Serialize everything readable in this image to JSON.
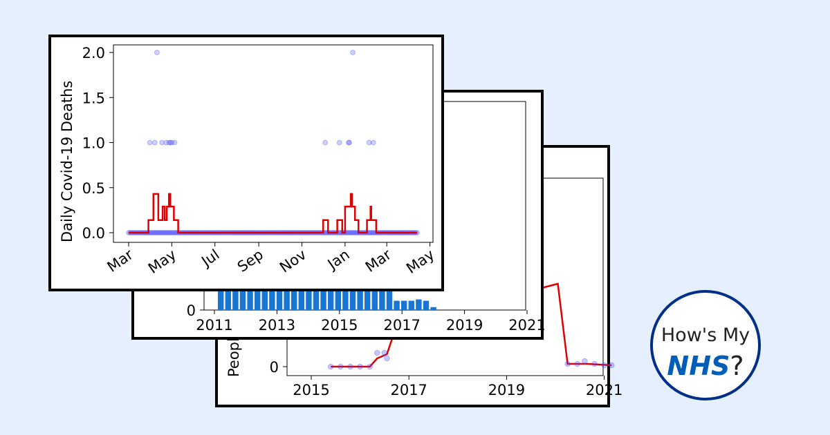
{
  "colors": {
    "background": "#e6effd",
    "bar": "#1976d2",
    "line": "#dd0000",
    "point": "#4444ff",
    "brand_blue": "#005eb8",
    "border_blue": "#003087"
  },
  "logo": {
    "text_line1": "How's My",
    "brand": "NHS",
    "suffix": "?"
  },
  "chart_data": [
    {
      "type": "scatter",
      "panel": "back",
      "ylabel": "People",
      "x_ticks": [
        "2015",
        "2017",
        "2019",
        "2021"
      ],
      "y_ticks": [
        "0"
      ],
      "points": [
        [
          2015.4,
          0
        ],
        [
          2015.6,
          0
        ],
        [
          2015.8,
          0
        ],
        [
          2016.0,
          0
        ],
        [
          2016.2,
          0
        ],
        [
          2016.35,
          0.5
        ],
        [
          2016.5,
          0.5
        ],
        [
          2016.55,
          0.3
        ],
        [
          2020.25,
          0.1
        ],
        [
          2020.45,
          0.1
        ],
        [
          2020.6,
          0.2
        ],
        [
          2020.8,
          0.1
        ],
        [
          2021.0,
          0.05
        ],
        [
          2021.15,
          0.05
        ]
      ],
      "line": [
        [
          2015.4,
          0
        ],
        [
          2016.2,
          0
        ],
        [
          2016.35,
          0.3
        ],
        [
          2016.55,
          0.45
        ],
        [
          2016.75,
          1.5
        ],
        [
          2020.05,
          3.0
        ],
        [
          2020.25,
          0.1
        ],
        [
          2020.45,
          0.1
        ],
        [
          2020.65,
          0.1
        ],
        [
          2021.15,
          0.05
        ]
      ]
    },
    {
      "type": "bar",
      "panel": "middle",
      "x_ticks": [
        "2011",
        "2013",
        "2015",
        "2017",
        "2019",
        "2021"
      ],
      "y_ticks": [
        "0"
      ],
      "categories": [
        "2011-Q2",
        "2011-Q3",
        "2011-Q4",
        "2012-Q1",
        "2012-Q2",
        "2012-Q3",
        "2012-Q4",
        "2013-Q1",
        "2013-Q2",
        "2013-Q3",
        "2013-Q4",
        "2014-Q1",
        "2014-Q2",
        "2014-Q3",
        "2014-Q4",
        "2015-Q1",
        "2015-Q2",
        "2015-Q3",
        "2015-Q4",
        "2016-Q1",
        "2016-Q2",
        "2016-Q3",
        "2016-Q4",
        "2017-Q1",
        "2017-Q2",
        "2017-Q3",
        "2017-Q4",
        "2018-Q1",
        "2018-Q2",
        "2018-Q3"
      ],
      "values": [
        100,
        100,
        100,
        100,
        100,
        100,
        100,
        100,
        100,
        100,
        100,
        100,
        100,
        100,
        100,
        100,
        100,
        100,
        100,
        100,
        100,
        100,
        100,
        100,
        48,
        48,
        48,
        55,
        48,
        15
      ]
    },
    {
      "type": "scatter",
      "panel": "front",
      "ylabel": "Daily Covid-19 Deaths",
      "x_ticks": [
        "Mar",
        "May",
        "Jul",
        "Sep",
        "Nov",
        "Jan",
        "Mar",
        "May"
      ],
      "y_ticks": [
        "0.0",
        "0.5",
        "1.0",
        "1.5",
        "2.0"
      ],
      "ylim": [
        -0.1,
        2.1
      ],
      "xlim": [
        -8,
        438
      ],
      "points_nonzero": [
        [
          30,
          1
        ],
        [
          37,
          1
        ],
        [
          40,
          2
        ],
        [
          47,
          1
        ],
        [
          53,
          1
        ],
        [
          57,
          1
        ],
        [
          59,
          1
        ],
        [
          61,
          1
        ],
        [
          65,
          1
        ],
        [
          278,
          1
        ],
        [
          298,
          1
        ],
        [
          311,
          1
        ],
        [
          312,
          1
        ],
        [
          317,
          2
        ],
        [
          340,
          1
        ],
        [
          346,
          1
        ]
      ],
      "zero_from": 0,
      "zero_to": 408,
      "line": [
        [
          0,
          0
        ],
        [
          28,
          0
        ],
        [
          28,
          0.14
        ],
        [
          35,
          0.14
        ],
        [
          35,
          0.43
        ],
        [
          42,
          0.43
        ],
        [
          42,
          0.14
        ],
        [
          48,
          0.14
        ],
        [
          48,
          0.29
        ],
        [
          51,
          0.29
        ],
        [
          51,
          0.14
        ],
        [
          54,
          0.14
        ],
        [
          54,
          0.29
        ],
        [
          57,
          0.29
        ],
        [
          57,
          0.43
        ],
        [
          59,
          0.43
        ],
        [
          59,
          0.29
        ],
        [
          64,
          0.29
        ],
        [
          64,
          0.14
        ],
        [
          70,
          0.14
        ],
        [
          70,
          0
        ],
        [
          275,
          0
        ],
        [
          275,
          0.14
        ],
        [
          282,
          0.14
        ],
        [
          282,
          0
        ],
        [
          295,
          0
        ],
        [
          295,
          0.14
        ],
        [
          302,
          0.14
        ],
        [
          302,
          0
        ],
        [
          306,
          0
        ],
        [
          306,
          0.29
        ],
        [
          314,
          0.29
        ],
        [
          314,
          0.43
        ],
        [
          316,
          0.43
        ],
        [
          316,
          0.29
        ],
        [
          320,
          0.29
        ],
        [
          320,
          0.14
        ],
        [
          325,
          0.14
        ],
        [
          325,
          0
        ],
        [
          337,
          0
        ],
        [
          337,
          0.14
        ],
        [
          342,
          0.14
        ],
        [
          342,
          0.29
        ],
        [
          343,
          0.29
        ],
        [
          343,
          0.14
        ],
        [
          350,
          0.14
        ],
        [
          350,
          0
        ],
        [
          408,
          0
        ]
      ]
    }
  ]
}
